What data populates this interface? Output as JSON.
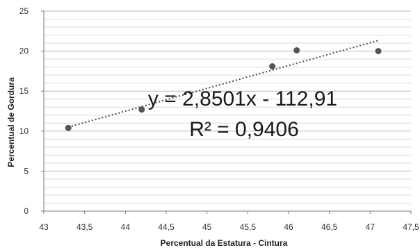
{
  "chart_data": {
    "type": "scatter",
    "title": "",
    "xlabel": "Percentual  da Estatura  - Cintura",
    "ylabel": "Percentual de Gordura",
    "xlim": [
      43,
      47.5
    ],
    "ylim": [
      0,
      25
    ],
    "x_ticks": [
      "43",
      "43,5",
      "44",
      "44,5",
      "45",
      "45,5",
      "46",
      "46,5",
      "47",
      "47,5"
    ],
    "y_ticks": [
      "0",
      "5",
      "10",
      "15",
      "20",
      "25"
    ],
    "grid": "horizontal minor and major",
    "series": [
      {
        "points": [
          {
            "x": 43.3,
            "y": 10.4
          },
          {
            "x": 44.2,
            "y": 12.7
          },
          {
            "x": 45.8,
            "y": 18.1
          },
          {
            "x": 46.1,
            "y": 20.1
          },
          {
            "x": 47.1,
            "y": 20.0
          }
        ],
        "color": "#555555"
      }
    ],
    "trendline": {
      "type": "linear",
      "slope": 2.8501,
      "intercept": -112.91,
      "style": "dotted",
      "equation": "y = 2,8501x - 112,91",
      "r_squared": "R² = 0,9406"
    }
  }
}
